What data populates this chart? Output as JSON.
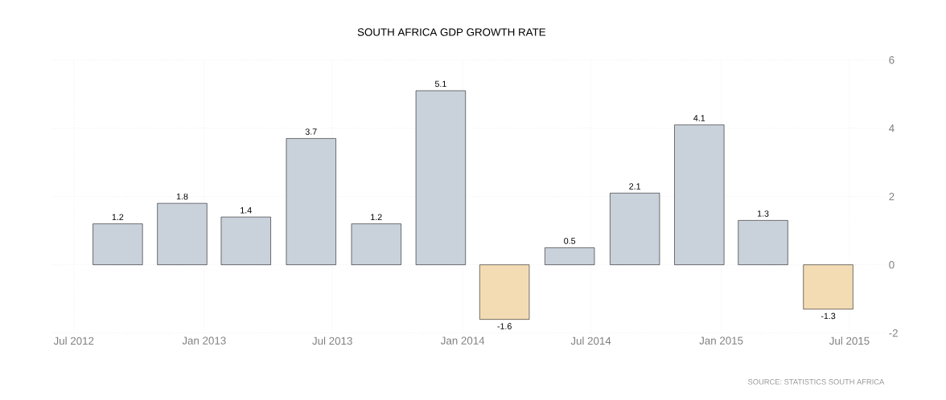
{
  "chart_data": {
    "type": "bar",
    "title": "SOUTH AFRICA GDP GROWTH RATE",
    "x": [
      "2012-09",
      "2012-12",
      "2013-03",
      "2013-06",
      "2013-09",
      "2013-12",
      "2014-03",
      "2014-06",
      "2014-09",
      "2014-12",
      "2015-03",
      "2015-06"
    ],
    "values": [
      1.2,
      1.8,
      1.4,
      3.7,
      1.2,
      5.1,
      -1.6,
      0.5,
      2.1,
      4.1,
      1.3,
      -1.3
    ],
    "colors": [
      "#c9d1db",
      "#c9d1db",
      "#c9d1db",
      "#c9d1db",
      "#c9d1db",
      "#c9d1db",
      "#f3dcb4",
      "#c9d1db",
      "#c9d1db",
      "#c9d1db",
      "#c9d1db",
      "#f3dcb4"
    ],
    "data_labels": true,
    "xlim": [
      "2012-06-01",
      "2015-08-20"
    ],
    "xticks": [
      {
        "value": "2012-07",
        "label": "Jul 2012"
      },
      {
        "value": "2013-01",
        "label": "Jan 2013"
      },
      {
        "value": "2013-07",
        "label": "Jul 2013"
      },
      {
        "value": "2014-01",
        "label": "Jan 2014"
      },
      {
        "value": "2014-07",
        "label": "Jul 2014"
      },
      {
        "value": "2015-01",
        "label": "Jan 2015"
      },
      {
        "value": "2015-07",
        "label": "Jul 2015"
      }
    ],
    "ylim": [
      -2,
      6
    ],
    "yticks": [
      -2,
      0,
      2,
      4,
      6
    ],
    "grid": true,
    "annotations": [
      "SOURCE: STATISTICS SOUTH AFRICA"
    ]
  }
}
